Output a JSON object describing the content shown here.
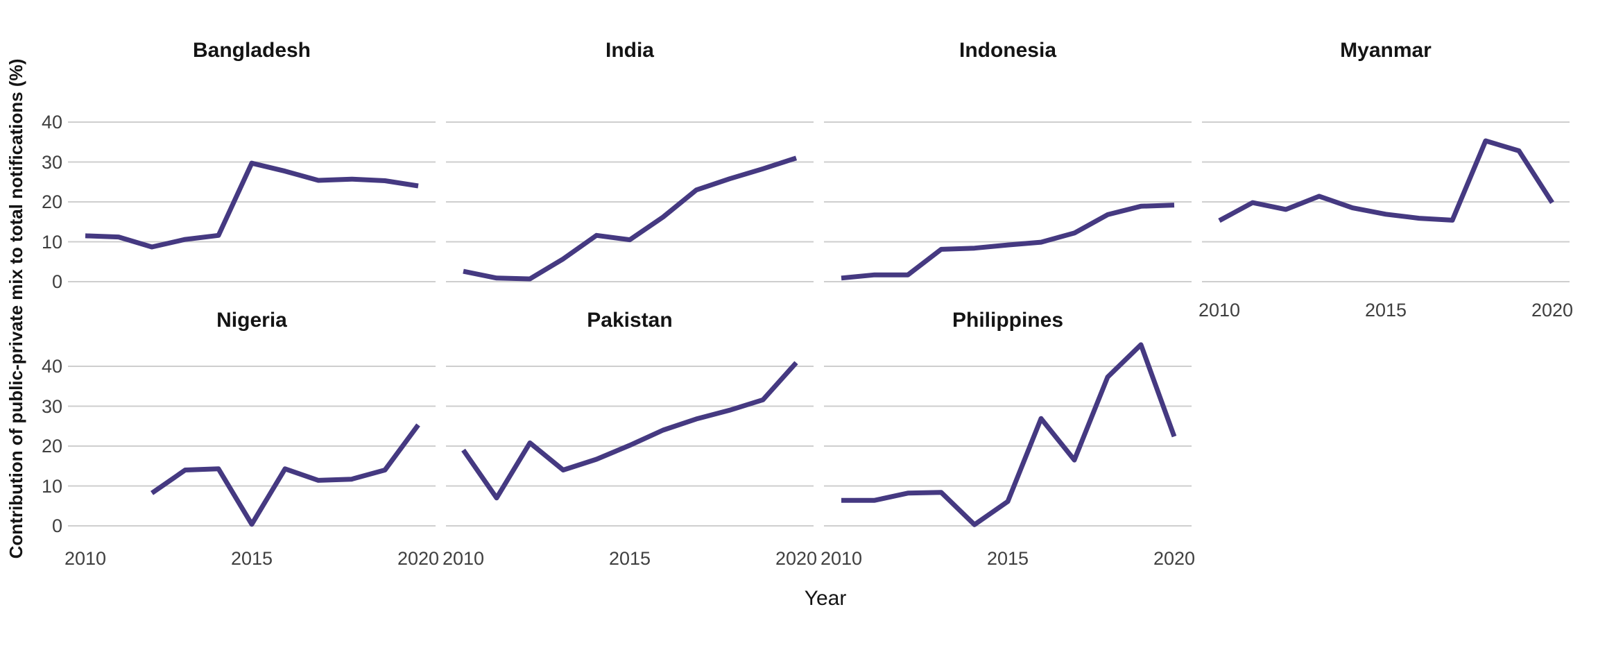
{
  "axes": {
    "y_title": "Contribution of public-private mix to total notifications (%)",
    "x_title": "Year",
    "y_tick_labels": [
      "40",
      "30",
      "20",
      "10",
      "0"
    ],
    "x_tick_labels": [
      "2010",
      "2015",
      "2020"
    ]
  },
  "style": {
    "background": "#ffffff",
    "line_color": "#453981",
    "grid_color": "#cecece",
    "tick_label_color": "#3f3f3f",
    "title_color": "#141414"
  },
  "chart_data": {
    "type": "line",
    "title": "",
    "xlabel": "Year",
    "ylabel": "Contribution of public-private mix to total notifications (%)",
    "x": [
      2010,
      2011,
      2012,
      2013,
      2014,
      2015,
      2016,
      2017,
      2018,
      2019,
      2020
    ],
    "x_ticks_shown": [
      2010,
      2015,
      2020
    ],
    "y_gridlines": [
      0,
      10,
      20,
      30,
      40
    ],
    "ylim": [
      -2.5,
      50
    ],
    "grid": "horizontal major gridlines only, no axis lines, no tick marks",
    "legend": "none",
    "facet_layout": "facet wrap, 4 columns x 2 rows, shared x and y scales; y tick labels on left column only; x tick labels under bottom panel of each column",
    "series": [
      {
        "name": "Bangladesh",
        "values": [
          11.5,
          11.2,
          8.7,
          10.6,
          11.6,
          29.7,
          27.7,
          25.4,
          25.7,
          25.3,
          24.0
        ]
      },
      {
        "name": "India",
        "values": [
          2.6,
          0.9,
          0.7,
          5.7,
          11.6,
          10.5,
          16.2,
          23.0,
          25.8,
          28.3,
          31.0
        ]
      },
      {
        "name": "Indonesia",
        "values": [
          0.9,
          1.7,
          1.7,
          8.1,
          8.4,
          9.2,
          9.9,
          12.2,
          16.8,
          18.9,
          19.2
        ]
      },
      {
        "name": "Myanmar",
        "values": [
          15.3,
          19.8,
          18.1,
          21.4,
          18.5,
          16.9,
          15.9,
          15.4,
          35.3,
          32.8,
          19.8
        ]
      },
      {
        "name": "Nigeria",
        "values": [
          null,
          null,
          8.2,
          14.0,
          14.3,
          0.4,
          14.3,
          11.4,
          11.7,
          14.0,
          25.3
        ]
      },
      {
        "name": "Pakistan",
        "values": [
          19.0,
          7.0,
          20.8,
          14.0,
          16.7,
          20.2,
          24.0,
          26.8,
          29.0,
          31.6,
          40.9
        ]
      },
      {
        "name": "Philippines",
        "values": [
          6.4,
          6.4,
          8.2,
          8.4,
          0.3,
          6.1,
          26.9,
          16.5,
          37.3,
          45.4,
          22.4
        ]
      }
    ]
  }
}
